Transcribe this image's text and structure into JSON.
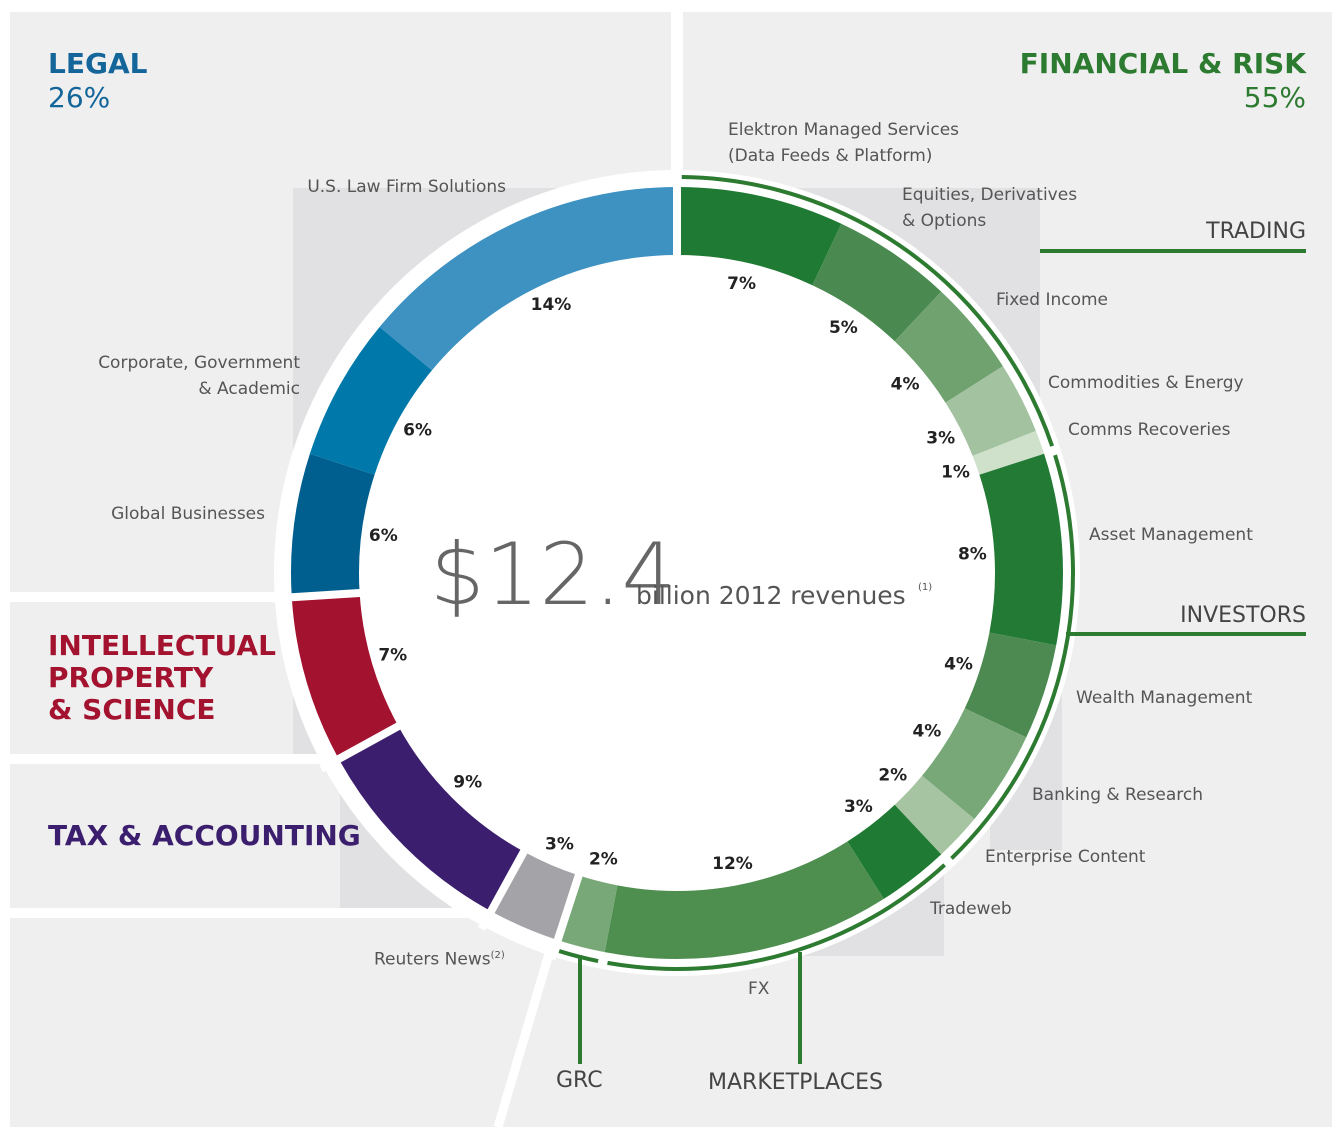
{
  "chart_data": {
    "type": "donut",
    "categories": [
      "Elektron Managed Services\n(Data Feeds & Platform)",
      "Equities, Derivatives\n& Options",
      "Fixed Income",
      "Commodities & Energy",
      "Comms Recoveries",
      "Asset Management",
      "Wealth Management",
      "Banking & Research",
      "Enterprise Content",
      "Tradeweb",
      "FX",
      "GRC",
      "Reuters News",
      "TAX & ACCOUNTING",
      "INTELLECTUAL\nPROPERTY\n& SCIENCE",
      "Global Businesses",
      "Corporate, Government\n& Academic",
      "U.S. Law Firm Solutions"
    ],
    "values": [
      7,
      5,
      4,
      3,
      1,
      8,
      4,
      4,
      2,
      3,
      12,
      2,
      3,
      9,
      7,
      6,
      6,
      14
    ],
    "value_labels": [
      "7%",
      "5%",
      "4%",
      "3%",
      "1%",
      "8%",
      "4%",
      "4%",
      "2%",
      "3%",
      "12%",
      "2%",
      "3%",
      "9%",
      "7%",
      "6%",
      "6%",
      "14%"
    ],
    "colors": [
      "#1f7a33",
      "#4a8a50",
      "#6fa26f",
      "#a3c29f",
      "#cfe0cb",
      "#237a35",
      "#4c8a52",
      "#78a877",
      "#a6c4a2",
      "#1f7a33",
      "#4e8f50",
      "#78a877",
      "#a3a3a8",
      "#3b1e6d",
      "#a3122f",
      "#005f8f",
      "#0079aa",
      "#3e92c2"
    ],
    "total_label": "$12.4",
    "total_text": "billion 2012 revenues",
    "total_note": "(1)",
    "reuters_note": "(2)",
    "divisions": [
      {
        "name": "LEGAL",
        "share": "26%",
        "color": "#13659a"
      },
      {
        "name": "FINANCIAL & RISK",
        "share": "55%",
        "color": "#2d7a31"
      }
    ],
    "groups": [
      "TRADING",
      "INVESTORS",
      "MARKETPLACES"
    ]
  }
}
